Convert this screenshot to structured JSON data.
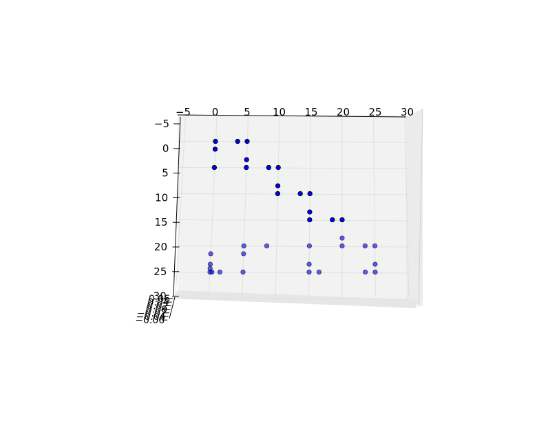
{
  "chart_data": {
    "type": "scatter",
    "projection": "3d",
    "title": "",
    "xlabel": "",
    "ylabel": "",
    "zlabel": "",
    "xlim": [
      -5,
      30
    ],
    "ylim": [
      -5,
      30
    ],
    "grid": true,
    "x_ticks": [
      "−5",
      "0",
      "5",
      "10",
      "15",
      "20",
      "25",
      "30"
    ],
    "y_ticks": [
      "−5",
      "0",
      "5",
      "10",
      "15",
      "20",
      "25",
      "30"
    ],
    "z_ticks": [
      "−0.06",
      "−0.04",
      "−0.02",
      "0.00",
      "0.02",
      "0.04",
      "0.06"
    ],
    "colors": {
      "marker": "#0000ff",
      "edge": "#000000",
      "pane": "#f2f2f2",
      "grid": "#e0e0e0"
    },
    "series": [
      {
        "values": [
          {
            "x": 0,
            "y": 0,
            "z": 0.0
          },
          {
            "x": 0,
            "y": 1.5,
            "z": 0.0
          },
          {
            "x": 0,
            "y": 5,
            "z": 0.0
          },
          {
            "x": 3.5,
            "y": 0,
            "z": 0.0
          },
          {
            "x": 5,
            "y": 0,
            "z": 0.0
          },
          {
            "x": 5,
            "y": 3.5,
            "z": 0.0
          },
          {
            "x": 5,
            "y": 5,
            "z": 0.0
          },
          {
            "x": 8.5,
            "y": 5,
            "z": 0.0
          },
          {
            "x": 10,
            "y": 5,
            "z": 0.0
          },
          {
            "x": 10,
            "y": 8.5,
            "z": 0.0
          },
          {
            "x": 10,
            "y": 10,
            "z": 0.0
          },
          {
            "x": 13.5,
            "y": 10,
            "z": 0.0
          },
          {
            "x": 15,
            "y": 10,
            "z": 0.0
          },
          {
            "x": 15,
            "y": 13.5,
            "z": 0.0
          },
          {
            "x": 15,
            "y": 15,
            "z": 0.0
          },
          {
            "x": 18.5,
            "y": 15,
            "z": 0.0
          },
          {
            "x": 20,
            "y": 15,
            "z": 0.0
          },
          {
            "x": 20,
            "y": 18.5,
            "z": 0.0
          },
          {
            "x": 20,
            "y": 20,
            "z": 0.0
          },
          {
            "x": 23.5,
            "y": 20,
            "z": 0.0
          },
          {
            "x": 25,
            "y": 20,
            "z": 0.0
          },
          {
            "x": 25,
            "y": 23.5,
            "z": 0.0
          },
          {
            "x": 25,
            "y": 25,
            "z": 0.0
          },
          {
            "x": 23.5,
            "y": 25,
            "z": 0.0
          },
          {
            "x": 15,
            "y": 20,
            "z": 0.0
          },
          {
            "x": 15,
            "y": 23.5,
            "z": 0.0
          },
          {
            "x": 15,
            "y": 25,
            "z": 0.0
          },
          {
            "x": 16.5,
            "y": 25,
            "z": 0.0
          },
          {
            "x": 5,
            "y": 20,
            "z": 0.0
          },
          {
            "x": 8.5,
            "y": 20,
            "z": 0.0
          },
          {
            "x": 5,
            "y": 21.5,
            "z": 0.0
          },
          {
            "x": 5,
            "y": 25,
            "z": 0.0
          },
          {
            "x": 0,
            "y": 21.5,
            "z": 0.0
          },
          {
            "x": 0,
            "y": 23.5,
            "z": 0.0
          },
          {
            "x": 0,
            "y": 24.3,
            "z": 0.0
          },
          {
            "x": 0,
            "y": 25,
            "z": 0.0
          },
          {
            "x": 0.3,
            "y": 25,
            "z": 0.0
          },
          {
            "x": 1.5,
            "y": 25,
            "z": 0.0
          }
        ]
      }
    ]
  }
}
